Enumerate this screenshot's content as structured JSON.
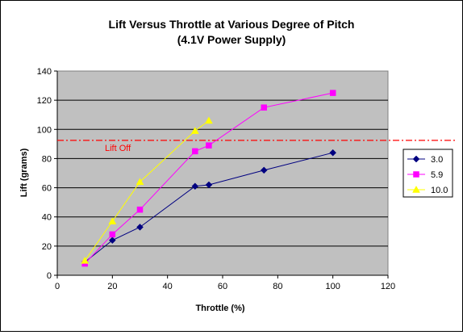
{
  "chart_data": {
    "type": "line",
    "title_line1": "Lift Versus Throttle at Various Degree of Pitch",
    "title_line2": "(4.1V Power Supply)",
    "xlabel": "Throttle (%)",
    "ylabel": "Lift (grams)",
    "xlim": [
      0,
      120
    ],
    "ylim": [
      0,
      140
    ],
    "x_ticks": [
      0,
      20,
      40,
      60,
      80,
      100,
      120
    ],
    "y_ticks": [
      0,
      20,
      40,
      60,
      80,
      100,
      120,
      140
    ],
    "grid": "horizontal",
    "plot_background": "#c0c0c0",
    "legend_position": "right",
    "reference_line": {
      "label": "Lift Off",
      "y": 92.5,
      "color": "#ff0000",
      "style": "dash-dot"
    },
    "series": [
      {
        "name": "3.0",
        "color": "#000080",
        "marker": "diamond",
        "x": [
          10,
          20,
          30,
          50,
          55,
          75,
          100
        ],
        "y": [
          9,
          24,
          33,
          61,
          62,
          72,
          84
        ]
      },
      {
        "name": "5.9",
        "color": "#ff00ff",
        "marker": "square",
        "x": [
          10,
          20,
          30,
          50,
          55,
          75,
          100
        ],
        "y": [
          8,
          28,
          45,
          85,
          89,
          115,
          125
        ]
      },
      {
        "name": "10.0",
        "color": "#ffff00",
        "marker": "triangle",
        "x": [
          10,
          20,
          30,
          50,
          55
        ],
        "y": [
          10,
          37,
          64,
          99,
          106
        ]
      }
    ]
  }
}
